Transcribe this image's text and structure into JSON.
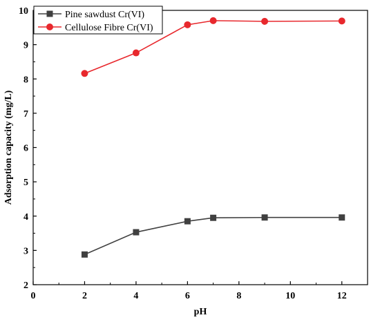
{
  "chart_data": {
    "type": "line",
    "title": "",
    "xlabel": "pH",
    "ylabel": "Adsorption capacity (mg/L)",
    "xlim": [
      0,
      13
    ],
    "ylim": [
      2,
      10
    ],
    "xticks": [
      0,
      2,
      4,
      6,
      8,
      10,
      12
    ],
    "yticks": [
      2,
      3,
      4,
      5,
      6,
      7,
      8,
      9,
      10
    ],
    "grid": false,
    "legend_position": "top-left",
    "series": [
      {
        "name": "Pine sawdust Cr(VI)",
        "color": "#404040",
        "marker": "square",
        "x": [
          2,
          4,
          6,
          7,
          9,
          12
        ],
        "y": [
          2.88,
          3.53,
          3.85,
          3.95,
          3.96,
          3.96
        ]
      },
      {
        "name": "Cellulose Fibre Cr(VI)",
        "color": "#e8282d",
        "marker": "circle",
        "x": [
          2,
          4,
          6,
          7,
          9,
          12
        ],
        "y": [
          8.16,
          8.76,
          9.58,
          9.7,
          9.68,
          9.69
        ]
      }
    ]
  }
}
